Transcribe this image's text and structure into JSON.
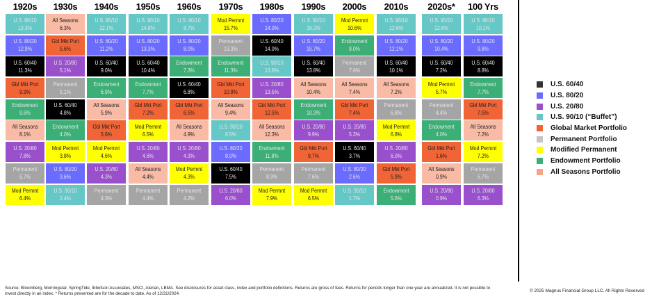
{
  "chart_data": {
    "type": "table",
    "title": "",
    "colors": {
      "U.S. 60/40": "#000000",
      "U.S. 80/20": "#6b6bff",
      "U.S. 20/80": "#9a4fcd",
      "U.S. 90/10": "#66c8c6",
      "Gbl Mkt Port": "#f06436",
      "Permanent": "#a5a5a5",
      "Mod Permnt": "#ffff00",
      "Endowment": "#3caf77",
      "All Seasons": "#f9bba6"
    },
    "dark_text_on": [
      "Mod Permnt",
      "All Seasons",
      "Gbl Mkt Port"
    ],
    "columns": [
      {
        "header": "1920s",
        "cells": [
          [
            "U.S. 90/10",
            "13.3%"
          ],
          [
            "U.S. 80/20",
            "12.9%"
          ],
          [
            "U.S. 60/40",
            "11.3%"
          ],
          [
            "Gbl Mkt Port",
            "9.9%"
          ],
          [
            "Endowment",
            "9.6%"
          ],
          [
            "All Seasons",
            "8.1%"
          ],
          [
            "U.S. 20/80",
            "7.8%"
          ],
          [
            "Permanent",
            "6.7%"
          ],
          [
            "Mod Permnt",
            "6.4%"
          ]
        ]
      },
      {
        "header": "1930s",
        "cells": [
          [
            "All Seasons",
            "6.3%"
          ],
          [
            "Gbl Mkt Port",
            "5.6%"
          ],
          [
            "U.S. 20/80",
            "5.1%"
          ],
          [
            "Permanent",
            "5.1%"
          ],
          [
            "U.S. 60/40",
            "4.8%"
          ],
          [
            "Endowment",
            "4.0%"
          ],
          [
            "Mod Permnt",
            "3.8%"
          ],
          [
            "U.S. 80/20",
            "3.6%"
          ],
          [
            "U.S. 90/10",
            "2.4%"
          ]
        ]
      },
      {
        "header": "1940s",
        "cells": [
          [
            "U.S. 90/10",
            "12.1%"
          ],
          [
            "U.S. 80/20",
            "11.2%"
          ],
          [
            "U.S. 60/40",
            "9.0%"
          ],
          [
            "Endowment",
            "6.9%"
          ],
          [
            "All Seasons",
            "5.9%"
          ],
          [
            "Gbl Mkt Port",
            "5.6%"
          ],
          [
            "Mod Permnt",
            "4.6%"
          ],
          [
            "U.S. 20/80",
            "4.3%"
          ],
          [
            "Permanent",
            "4.3%"
          ]
        ]
      },
      {
        "header": "1950s",
        "cells": [
          [
            "U.S. 90/10",
            "14.8%"
          ],
          [
            "U.S. 80/20",
            "13.3%"
          ],
          [
            "U.S. 60/40",
            "10.4%"
          ],
          [
            "Endowment",
            "7.7%"
          ],
          [
            "Gbl Mkt Port",
            "7.2%"
          ],
          [
            "Mod Permnt",
            "6.5%"
          ],
          [
            "U.S. 20/80",
            "4.6%"
          ],
          [
            "All Seasons",
            "4.4%"
          ],
          [
            "Permanent",
            "4.4%"
          ]
        ]
      },
      {
        "header": "1960s",
        "cells": [
          [
            "U.S. 90/10",
            "8.7%"
          ],
          [
            "U.S. 80/20",
            "8.0%"
          ],
          [
            "Endowment",
            "7.3%"
          ],
          [
            "U.S. 60/40",
            "6.8%"
          ],
          [
            "Gbl Mkt Port",
            "6.5%"
          ],
          [
            "All Seasons",
            "4.9%"
          ],
          [
            "U.S. 20/80",
            "4.3%"
          ],
          [
            "Mod Permnt",
            "4.3%"
          ],
          [
            "Permanent",
            "4.2%"
          ]
        ]
      },
      {
        "header": "1970s",
        "cells": [
          [
            "Mod Permnt",
            "15.7%"
          ],
          [
            "Permanent",
            "13.3%"
          ],
          [
            "Endowment",
            "11.3%"
          ],
          [
            "Gbl Mkt Port",
            "10.8%"
          ],
          [
            "All Seasons",
            "9.4%"
          ],
          [
            "U.S. 90/10",
            "8.5%"
          ],
          [
            "U.S. 80/20",
            "8.0%"
          ],
          [
            "U.S. 60/40",
            "7.5%"
          ],
          [
            "U.S. 20/80",
            "6.0%"
          ]
        ]
      },
      {
        "header": "1980s",
        "cells": [
          [
            "U.S. 80/20",
            "14.0%"
          ],
          [
            "U.S. 60/40",
            "14.0%"
          ],
          [
            "U.S. 90/10",
            "13.6%"
          ],
          [
            "U.S. 20/80",
            "13.5%"
          ],
          [
            "Gbl Mkt Port",
            "12.5%"
          ],
          [
            "All Seasons",
            "12.3%"
          ],
          [
            "Endowment",
            "11.8%"
          ],
          [
            "Permanent",
            "8.9%"
          ],
          [
            "Mod Permnt",
            "7.9%"
          ]
        ]
      },
      {
        "header": "1990s",
        "cells": [
          [
            "U.S. 90/10",
            "16.2%"
          ],
          [
            "U.S. 80/20",
            "15.7%"
          ],
          [
            "U.S. 60/40",
            "13.8%"
          ],
          [
            "All Seasons",
            "10.4%"
          ],
          [
            "Endowment",
            "10.3%"
          ],
          [
            "U.S. 20/80",
            "9.9%"
          ],
          [
            "Gbl Mkt Port",
            "9.7%"
          ],
          [
            "Permanent",
            "7.6%"
          ],
          [
            "Mod Permnt",
            "6.5%"
          ]
        ]
      },
      {
        "header": "2000s",
        "cells": [
          [
            "Mod Permnt",
            "10.6%"
          ],
          [
            "Endowment",
            "8.0%"
          ],
          [
            "Permanent",
            "7.6%"
          ],
          [
            "All Seasons",
            "7.4%"
          ],
          [
            "Gbl Mkt Port",
            "7.4%"
          ],
          [
            "U.S. 20/80",
            "5.3%"
          ],
          [
            "U.S. 60/40",
            "3.7%"
          ],
          [
            "U.S. 80/20",
            "2.6%"
          ],
          [
            "U.S. 90/10",
            "1.7%"
          ]
        ]
      },
      {
        "header": "2010s",
        "cells": [
          [
            "U.S. 90/10",
            "12.6%"
          ],
          [
            "U.S. 80/20",
            "12.1%"
          ],
          [
            "U.S. 60/40",
            "10.1%"
          ],
          [
            "All Seasons",
            "7.2%"
          ],
          [
            "Permanent",
            "6.8%"
          ],
          [
            "Mod Permnt",
            "6.8%"
          ],
          [
            "U.S. 20/80",
            "6.0%"
          ],
          [
            "Gbl Mkt Port",
            "5.9%"
          ],
          [
            "Endowment",
            "5.6%"
          ]
        ]
      },
      {
        "header": "2020s*",
        "cells": [
          [
            "U.S. 90/10",
            "12.6%"
          ],
          [
            "U.S. 80/20",
            "10.4%"
          ],
          [
            "U.S. 60/40",
            "7.2%"
          ],
          [
            "Mod Permnt",
            "5.7%"
          ],
          [
            "Permanent",
            "4.4%"
          ],
          [
            "Endowment",
            "4.0%"
          ],
          [
            "Gbl Mkt Port",
            "1.6%"
          ],
          [
            "All Seasons",
            "0.9%"
          ],
          [
            "U.S. 20/80",
            "0.9%"
          ]
        ]
      },
      {
        "header": "100 Yrs",
        "cells": [
          [
            "U.S. 90/10",
            "10.1%"
          ],
          [
            "U.S. 80/20",
            "9.8%"
          ],
          [
            "U.S. 60/40",
            "8.8%"
          ],
          [
            "Endowment",
            "7.7%"
          ],
          [
            "Gbl Mkt Port",
            "7.5%"
          ],
          [
            "All Seasons",
            "7.2%"
          ],
          [
            "Mod Permnt",
            "7.2%"
          ],
          [
            "Permanent",
            "6.7%"
          ],
          [
            "U.S. 20/80",
            "6.3%"
          ]
        ]
      }
    ],
    "legend": [
      {
        "label": "U.S. 60/40",
        "color": "#333333"
      },
      {
        "label": "U.S. 80/20",
        "color": "#6b6bff"
      },
      {
        "label": "U.S. 20/80",
        "color": "#9a4fcd"
      },
      {
        "label": "U.S. 90/10 (“Buffet”)",
        "color": "#66c8c6"
      },
      {
        "label": "Global Market Portfolio",
        "color": "#f06436"
      },
      {
        "label": "Permanent Portfolio",
        "color": "#c4c4c4"
      },
      {
        "label": "Modified Permanent",
        "color": "#ffff00"
      },
      {
        "label": "Endowment Portfolio",
        "color": "#3caf77"
      },
      {
        "label": "All Seasons Portfolio",
        "color": "#f5a48a"
      }
    ],
    "legend_position": "right"
  },
  "footer": {
    "source": "Source: Bloomberg, Morningstar, SpringTide, Ibbotson Associates, MSCI, Alerian, LBMA. See disclosures for asset class, index and portfolio definitions. Returns are gross of fees. Returns for periods longer than one year are annualized. It is not possible to invest directly in an index. * Returns presented are for the decade to date. As of 12/31/2024.",
    "copyright": "© 2025 Magnus Financial Group LLC. All Rights Reserved"
  }
}
